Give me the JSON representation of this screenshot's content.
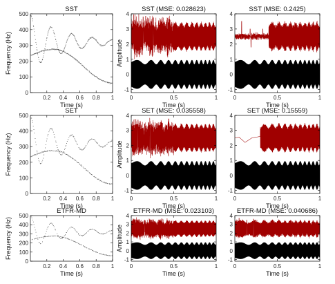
{
  "figure": {
    "background": "#ffffff",
    "colors": {
      "reconstruction": "#a00000",
      "original": "#000000",
      "tf_ridge": "#333333"
    }
  },
  "chart_data": [
    {
      "id": "sst-tf",
      "type": "scatter",
      "title": "SST",
      "xlabel": "Time (s)",
      "ylabel": "Frequency (Hz)",
      "xlim": [
        0,
        1
      ],
      "ylim": [
        0,
        500
      ],
      "xticks": [
        0.2,
        0.4,
        0.6,
        0.8,
        1
      ],
      "xtick_labels": [
        "0.2",
        "0.4",
        "0.6",
        "0.8",
        "1"
      ],
      "yticks": [
        0,
        100,
        200,
        300,
        400,
        500
      ],
      "ytick_labels": [
        "0",
        "100",
        "200",
        "300",
        "400",
        "500"
      ],
      "grid": false,
      "series": [
        {
          "kind": "damped",
          "base": 320,
          "amp": 170,
          "freq": 4.0,
          "decay": 2.3,
          "phase": 0.0,
          "dens": 0.9
        },
        {
          "kind": "hump",
          "base": 235,
          "rise": 40,
          "peak_t": 0.28,
          "end": 60,
          "dens": 0.9
        }
      ]
    },
    {
      "id": "sst-mode1",
      "type": "line",
      "title": "SST (MSE: 0.028623)",
      "xlabel": "Time (s)",
      "ylabel": "Amplitude",
      "xlim": [
        0,
        1
      ],
      "ylim": [
        -1.2,
        4
      ],
      "xticks": [
        0,
        0.5,
        1
      ],
      "xtick_labels": [
        "0",
        "0.5",
        "1"
      ],
      "yticks": [
        -1,
        0,
        1,
        2,
        3,
        4
      ],
      "ytick_labels": [
        "-1",
        "0",
        "1",
        "2",
        "3",
        "4"
      ],
      "grid": false,
      "series": [
        {
          "role": "reconstruction",
          "center": 2.5,
          "amp": 0.9,
          "noise": [
            [
              0,
              0.5,
              0.3
            ],
            [
              0.5,
              1,
              0.05
            ]
          ],
          "spikes": [
            [
              0.03,
              3.95
            ],
            [
              0.14,
              3.8
            ],
            [
              0.17,
              3.85
            ],
            [
              0.26,
              3.75
            ]
          ]
        },
        {
          "role": "original",
          "center": 0,
          "amp": 0.95,
          "noise": [
            [
              0,
              1,
              0
            ]
          ]
        }
      ]
    },
    {
      "id": "sst-mode2",
      "type": "line",
      "title": "SST (MSE: 0.2425)",
      "xlabel": "Time (s)",
      "ylabel": "",
      "xlim": [
        0,
        1
      ],
      "ylim": [
        -1.2,
        4
      ],
      "xticks": [
        0,
        0.5,
        1
      ],
      "xtick_labels": [
        "0",
        "0.5",
        "1"
      ],
      "yticks": [
        -1,
        0,
        1,
        2,
        3,
        4
      ],
      "ytick_labels": [
        "-1",
        "0",
        "1",
        "2",
        "3",
        "4"
      ],
      "grid": false,
      "series": [
        {
          "role": "reconstruction",
          "center": 2.5,
          "amp": 0.9,
          "segments": [
            [
              0,
              0.4,
              0.12
            ],
            [
              0.4,
              1,
              0.9
            ]
          ],
          "noise": [
            [
              0,
              1,
              0.08
            ]
          ],
          "spikes": [
            [
              0.08,
              3.5
            ],
            [
              0.18,
              3.0
            ],
            [
              0.19,
              1.8
            ],
            [
              0.33,
              3.0
            ]
          ]
        },
        {
          "role": "original",
          "center": 0,
          "amp": 0.95,
          "noise": [
            [
              0,
              1,
              0
            ]
          ]
        }
      ]
    },
    {
      "id": "set-tf",
      "type": "scatter",
      "title": "SET",
      "xlabel": "Time (s)",
      "ylabel": "Frequency (Hz)",
      "xlim": [
        0,
        1
      ],
      "ylim": [
        0,
        500
      ],
      "xticks": [
        0.2,
        0.4,
        0.6,
        0.8,
        1
      ],
      "xtick_labels": [
        "0.2",
        "0.4",
        "0.6",
        "0.8",
        "1"
      ],
      "yticks": [
        0,
        100,
        200,
        300,
        400,
        500
      ],
      "ytick_labels": [
        "0",
        "100",
        "200",
        "300",
        "400",
        "500"
      ],
      "grid": false,
      "series": [
        {
          "kind": "damped",
          "base": 320,
          "amp": 170,
          "freq": 4.0,
          "decay": 2.3,
          "phase": 0.0,
          "dens": 0.55
        },
        {
          "kind": "hump",
          "base": 235,
          "rise": 40,
          "peak_t": 0.28,
          "end": 60,
          "dens": 0.55
        }
      ]
    },
    {
      "id": "set-mode1",
      "type": "line",
      "title": "SET (MSE: 0.035558)",
      "xlabel": "Time (s)",
      "ylabel": "Amplitude",
      "xlim": [
        0,
        1
      ],
      "ylim": [
        -1.2,
        4
      ],
      "xticks": [
        0,
        0.5,
        1
      ],
      "xtick_labels": [
        "0",
        "0.5",
        "1"
      ],
      "yticks": [
        -1,
        0,
        1,
        2,
        3,
        4
      ],
      "ytick_labels": [
        "-1",
        "0",
        "1",
        "2",
        "3",
        "4"
      ],
      "grid": false,
      "series": [
        {
          "role": "reconstruction",
          "center": 2.5,
          "amp": 0.9,
          "noise": [
            [
              0,
              0.5,
              0.25
            ],
            [
              0.5,
              1,
              0.05
            ]
          ],
          "spikes": [
            [
              0.08,
              3.7
            ],
            [
              0.22,
              3.6
            ]
          ]
        },
        {
          "role": "original",
          "center": 0,
          "amp": 0.95,
          "noise": [
            [
              0,
              1,
              0
            ]
          ]
        }
      ]
    },
    {
      "id": "set-mode2",
      "type": "line",
      "title": "SET (MSE: 0.15559)",
      "xlabel": "Time (s)",
      "ylabel": "",
      "xlim": [
        0,
        1
      ],
      "ylim": [
        -1.2,
        4
      ],
      "xticks": [
        0,
        0.5,
        1
      ],
      "xtick_labels": [
        "0",
        "0.5",
        "1"
      ],
      "yticks": [
        -1,
        0,
        1,
        2,
        3,
        4
      ],
      "ytick_labels": [
        "-1",
        "0",
        "1",
        "2",
        "3",
        "4"
      ],
      "grid": false,
      "series": [
        {
          "role": "reconstruction",
          "center": 2.5,
          "amp": 0.9,
          "segments": [
            [
              0,
              0.3,
              0.0
            ],
            [
              0.3,
              1,
              0.9
            ]
          ],
          "noise": [
            [
              0.3,
              1,
              0.05
            ]
          ],
          "drift": [
            [
              0,
              2.5
            ],
            [
              0.05,
              2.55
            ],
            [
              0.12,
              2.2
            ],
            [
              0.2,
              2.5
            ],
            [
              0.3,
              2.6
            ]
          ]
        },
        {
          "role": "original",
          "center": 0,
          "amp": 0.95,
          "noise": [
            [
              0,
              1,
              0
            ]
          ]
        }
      ]
    },
    {
      "id": "etfr-tf",
      "type": "scatter",
      "title": "ETFR-MD",
      "xlabel": "Time (s)",
      "ylabel": "Frequency (Hz)",
      "xlim": [
        0,
        1
      ],
      "ylim": [
        0,
        500
      ],
      "xticks": [
        0.2,
        0.4,
        0.6,
        0.8,
        1
      ],
      "xtick_labels": [
        "0.2",
        "0.4",
        "0.6",
        "0.8",
        "1"
      ],
      "yticks": [
        0,
        100,
        200,
        300,
        400,
        500
      ],
      "ytick_labels": [
        "0",
        "100",
        "200",
        "300",
        "400",
        "500"
      ],
      "grid": false,
      "series": [
        {
          "kind": "damped",
          "base": 320,
          "amp": 170,
          "freq": 4.0,
          "decay": 2.3,
          "phase": 0.0,
          "dens": 0.45
        },
        {
          "kind": "hump",
          "base": 235,
          "rise": 40,
          "peak_t": 0.28,
          "end": 60,
          "dens": 0.45
        }
      ]
    },
    {
      "id": "etfr-mode1",
      "type": "line",
      "title": "ETFR-MD (MSE: 0.023103)",
      "xlabel": "Time (s)",
      "ylabel": "Amplitude",
      "xlim": [
        0,
        1
      ],
      "ylim": [
        -1.2,
        4
      ],
      "xticks": [
        0,
        0.5,
        1
      ],
      "xtick_labels": [
        "0",
        "0.5",
        "1"
      ],
      "yticks": [
        -1,
        0,
        1,
        2,
        3,
        4
      ],
      "ytick_labels": [
        "-1",
        "0",
        "1",
        "2",
        "3",
        "4"
      ],
      "grid": false,
      "series": [
        {
          "role": "reconstruction",
          "center": 2.5,
          "amp": 0.9,
          "noise": [
            [
              0,
              0.5,
              0.2
            ],
            [
              0.5,
              1,
              0.04
            ]
          ],
          "spikes": [
            [
              0.03,
              3.6
            ],
            [
              0.16,
              3.5
            ]
          ]
        },
        {
          "role": "original",
          "center": 0,
          "amp": 0.95,
          "noise": [
            [
              0,
              1,
              0
            ]
          ]
        }
      ]
    },
    {
      "id": "etfr-mode2",
      "type": "line",
      "title": "ETFR-MD (MSE: 0.040686)",
      "xlabel": "Time (s)",
      "ylabel": "",
      "xlim": [
        0,
        1
      ],
      "ylim": [
        -1.2,
        4
      ],
      "xticks": [
        0,
        0.5,
        1
      ],
      "xtick_labels": [
        "0",
        "0.5",
        "1"
      ],
      "yticks": [
        -1,
        0,
        1,
        2,
        3,
        4
      ],
      "ytick_labels": [
        "-1",
        "0",
        "1",
        "2",
        "3",
        "4"
      ],
      "grid": false,
      "series": [
        {
          "role": "reconstruction",
          "center": 2.5,
          "amp": 0.9,
          "noise": [
            [
              0,
              1,
              0.1
            ]
          ],
          "spikes": [
            [
              0.05,
              3.7
            ],
            [
              0.14,
              3.5
            ],
            [
              0.22,
              3.6
            ]
          ]
        },
        {
          "role": "original",
          "center": 0,
          "amp": 0.95,
          "noise": [
            [
              0,
              1,
              0
            ]
          ]
        }
      ]
    }
  ]
}
